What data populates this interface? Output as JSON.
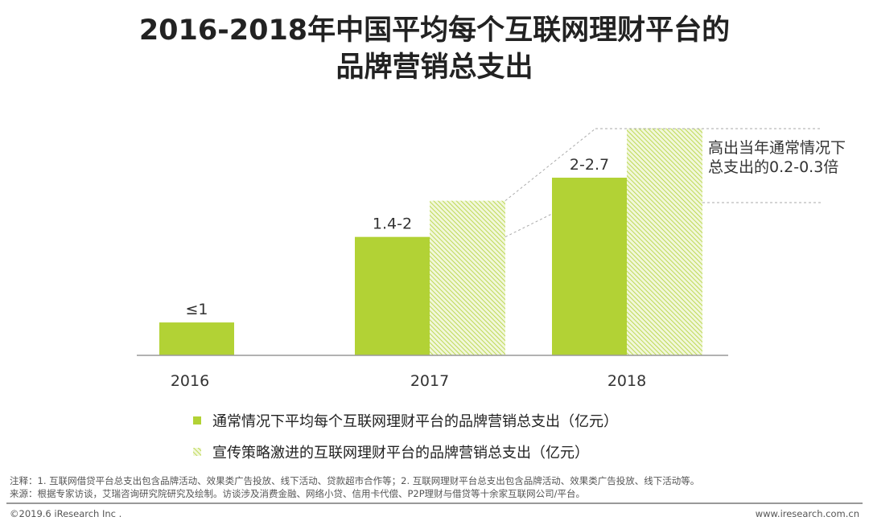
{
  "title_line1": "2016-2018年中国平均每个互联网理财平台的",
  "title_line2": "品牌营销总支出",
  "chart_data": {
    "type": "bar",
    "categories": [
      "2016",
      "2017",
      "2018"
    ],
    "series": [
      {
        "name": "通常情况下平均每个互联网理财平台的品牌营销总支出（亿元）",
        "values": [
          0.5,
          1.8,
          2.7
        ],
        "labels": [
          "≤1",
          "1.4-2",
          "2-2.7"
        ],
        "color": "#b2d235"
      },
      {
        "name": "宣传策略激进的互联网理财平台的品牌营销总支出（亿元）",
        "values": [
          null,
          2.35,
          3.45
        ],
        "color": "#b2d235",
        "pattern": "hatched"
      }
    ],
    "annotation": "高出当年通常情况下总支出的0.2-0.3倍",
    "annotation_line1": "高出当年通常情况下",
    "annotation_line2": "总支出的0.2-0.3倍",
    "ylim": [
      0,
      3.6
    ]
  },
  "footnote": "注释：1. 互联网借贷平台总支出包含品牌活动、效果类广告投放、线下活动、贷款超市合作等；2. 互联网理财平台总支出包含品牌活动、效果类广告投放、线下活动等。",
  "source": "来源：根据专家访谈，艾瑞咨询研究院研究及绘制。访谈涉及消费金融、网络小贷、信用卡代偿、P2P理财与借贷等十余家互联网公司/平台。",
  "copyright": "©2019.6 iResearch Inc .",
  "website": "www.iresearch.com.cn"
}
